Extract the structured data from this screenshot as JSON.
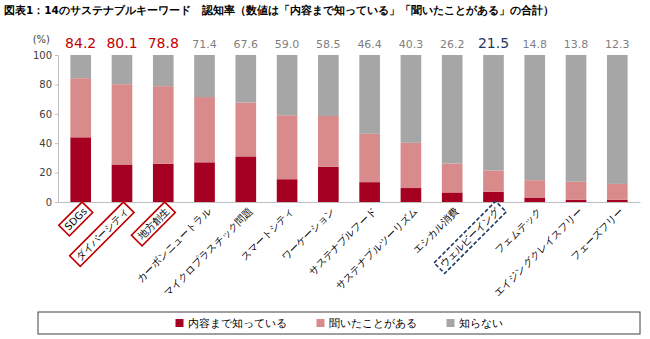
{
  "chart_data": {
    "type": "bar",
    "stacked": true,
    "title": "図表1：14のサステナブルキーワード　認知率（数値は「内容まで知っている」「聞いたことがある」の合計）",
    "ylabel": "(%)",
    "categories": [
      "SDGs",
      "ダイバーシティ",
      "地方創生",
      "カーボンニュートラル",
      "マイクロプラスチック問題",
      "スマートシティ",
      "ワーケーション",
      "サステナブルフード",
      "サステナブルツーリズム",
      "エシカル消費",
      "ウェルビーイング",
      "フェムテック",
      "エイジングクレイスフリー",
      "フェーズフリー"
    ],
    "series": [
      {
        "name": "内容まで知っている",
        "color": "#a50021",
        "values": [
          44.0,
          25.5,
          26.0,
          27.0,
          31.0,
          15.5,
          24.0,
          13.5,
          9.5,
          6.5,
          7.0,
          3.0,
          1.5,
          1.5
        ]
      },
      {
        "name": "聞いたことがある",
        "color": "#d98a8a",
        "values": [
          40.2,
          54.6,
          52.8,
          44.4,
          36.6,
          43.5,
          34.5,
          32.9,
          30.8,
          19.7,
          14.5,
          11.8,
          12.3,
          10.8
        ]
      },
      {
        "name": "知らない",
        "color": "#a6a6a6",
        "values": [
          15.8,
          19.9,
          21.2,
          28.6,
          32.4,
          41.0,
          41.5,
          53.6,
          59.7,
          73.8,
          78.5,
          85.2,
          86.2,
          87.7
        ]
      }
    ],
    "totals": {
      "values": [
        84.2,
        80.1,
        78.8,
        71.4,
        67.6,
        59.0,
        58.5,
        46.4,
        40.3,
        26.2,
        21.5,
        14.8,
        13.8,
        12.3
      ],
      "value_labels": [
        "84.2",
        "80.1",
        "78.8",
        "71.4",
        "67.6",
        "59.0",
        "58.5",
        "46.4",
        "40.3",
        "26.2",
        "21.5",
        "14.8",
        "13.8",
        "12.3"
      ],
      "colors": [
        "#c00000",
        "#c00000",
        "#c00000",
        "#7f7f7f",
        "#7f7f7f",
        "#7f7f7f",
        "#7f7f7f",
        "#7f7f7f",
        "#7f7f7f",
        "#7f7f7f",
        "#1f3864",
        "#7f7f7f",
        "#7f7f7f",
        "#7f7f7f"
      ]
    },
    "label_boxes": [
      {
        "indices": [
          0,
          1,
          2
        ],
        "color": "#c00000",
        "line_style": "solid"
      },
      {
        "indices": [
          10
        ],
        "color": "#1f3864",
        "line_style": "dashed"
      }
    ],
    "ylim": [
      0,
      100
    ],
    "yticks": [
      0,
      20,
      40,
      60,
      80,
      100
    ],
    "grid": false,
    "legend": "bottom",
    "data_labels": true
  }
}
